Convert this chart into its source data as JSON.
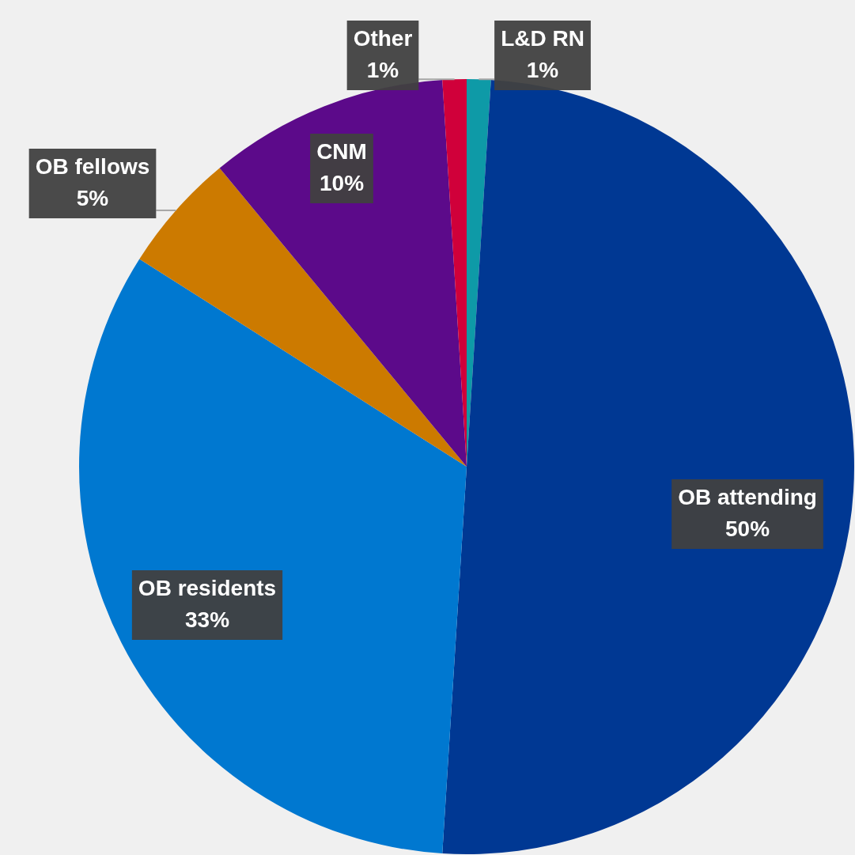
{
  "chart_data": {
    "type": "pie",
    "categories": [
      "L&D RN",
      "OB attending",
      "OB residents",
      "OB fellows",
      "CNM",
      "Other"
    ],
    "values": [
      1,
      50,
      33,
      5,
      10,
      1
    ],
    "value_labels": [
      "1%",
      "50%",
      "33%",
      "5%",
      "10%",
      "1%"
    ],
    "colors": [
      "#0e9aa7",
      "#003893",
      "#0078d0",
      "#cc7a00",
      "#5c0a8a",
      "#d0003a"
    ]
  }
}
